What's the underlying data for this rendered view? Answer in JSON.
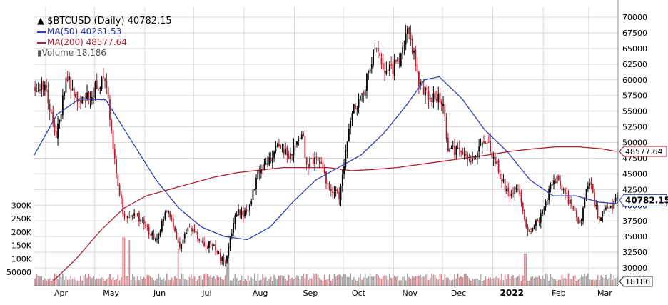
{
  "legend": {
    "title": "$BTCUSD (Daily) 40782.15",
    "ma50": "MA(50) 40261.53",
    "ma200": "MA(200) 48577.64",
    "volume": "Volume 18,186"
  },
  "colors": {
    "up": "#000000",
    "down": "#b01e2e",
    "ma50": "#3040b0",
    "ma200": "#b02030",
    "grid": "#d8d8d8",
    "vol_up": "#a8a8a8",
    "vol_down": "#d08a90"
  },
  "chart_data": {
    "type": "candlestick",
    "symbol": "$BTCUSD",
    "interval": "Daily",
    "last_price": 40782.15,
    "ylim": [
      28000,
      70000
    ],
    "price_ticks": [
      70000,
      67500,
      65000,
      62500,
      60000,
      57500,
      55000,
      52500,
      50000,
      47500,
      45000,
      42500,
      40000,
      37500,
      35000,
      32500,
      30000
    ],
    "volume_ticks": [
      "300K",
      "250K",
      "200K",
      "150K",
      "100K",
      "50000"
    ],
    "x_labels": [
      "Apr",
      "May",
      "Jun",
      "Jul",
      "Aug",
      "Sep",
      "Oct",
      "Nov",
      "Dec",
      "2022",
      "Feb",
      "Mar"
    ],
    "price_path": [
      [
        "2021-03-25",
        59000
      ],
      [
        "2021-04-01",
        59500
      ],
      [
        "2021-04-07",
        50500
      ],
      [
        "2021-04-14",
        60500
      ],
      [
        "2021-04-22",
        56500
      ],
      [
        "2021-04-28",
        57500
      ],
      [
        "2021-05-05",
        59800
      ],
      [
        "2021-05-09",
        58500
      ],
      [
        "2021-05-13",
        47500
      ],
      [
        "2021-05-19",
        38000
      ],
      [
        "2021-05-26",
        39000
      ],
      [
        "2021-06-01",
        36500
      ],
      [
        "2021-06-08",
        34500
      ],
      [
        "2021-06-15",
        39500
      ],
      [
        "2021-06-22",
        33500
      ],
      [
        "2021-06-29",
        36500
      ],
      [
        "2021-07-06",
        34200
      ],
      [
        "2021-07-13",
        33500
      ],
      [
        "2021-07-20",
        30500
      ],
      [
        "2021-07-27",
        39000
      ],
      [
        "2021-08-03",
        38500
      ],
      [
        "2021-08-10",
        45800
      ],
      [
        "2021-08-16",
        47000
      ],
      [
        "2021-08-22",
        49500
      ],
      [
        "2021-08-29",
        48000
      ],
      [
        "2021-09-06",
        51500
      ],
      [
        "2021-09-08",
        46500
      ],
      [
        "2021-09-15",
        47500
      ],
      [
        "2021-09-22",
        43000
      ],
      [
        "2021-09-29",
        41500
      ],
      [
        "2021-10-06",
        55000
      ],
      [
        "2021-10-13",
        57500
      ],
      [
        "2021-10-20",
        65000
      ],
      [
        "2021-10-27",
        61000
      ],
      [
        "2021-11-03",
        62500
      ],
      [
        "2021-11-10",
        67500
      ],
      [
        "2021-11-17",
        59500
      ],
      [
        "2021-11-24",
        57000
      ],
      [
        "2021-12-01",
        57000
      ],
      [
        "2021-12-04",
        49500
      ],
      [
        "2021-12-10",
        48500
      ],
      [
        "2021-12-18",
        46800
      ],
      [
        "2021-12-27",
        51000
      ],
      [
        "2022-01-03",
        46500
      ],
      [
        "2022-01-10",
        41800
      ],
      [
        "2022-01-17",
        42500
      ],
      [
        "2022-01-21",
        36500
      ],
      [
        "2022-01-24",
        35500
      ],
      [
        "2022-01-31",
        38500
      ],
      [
        "2022-02-07",
        44000
      ],
      [
        "2022-02-10",
        44200
      ],
      [
        "2022-02-17",
        40500
      ],
      [
        "2022-02-24",
        37000
      ],
      [
        "2022-03-01",
        44400
      ],
      [
        "2022-03-07",
        38000
      ],
      [
        "2022-03-14",
        39500
      ],
      [
        "2022-03-18",
        40782.15
      ]
    ],
    "series": [
      {
        "name": "MA(50)",
        "last": 40261.53,
        "points": [
          [
            "2021-03-25",
            48000
          ],
          [
            "2021-04-08",
            54500
          ],
          [
            "2021-04-22",
            57000
          ],
          [
            "2021-05-08",
            56800
          ],
          [
            "2021-05-22",
            51000
          ],
          [
            "2021-06-08",
            44000
          ],
          [
            "2021-06-22",
            39500
          ],
          [
            "2021-07-06",
            36500
          ],
          [
            "2021-07-20",
            35000
          ],
          [
            "2021-08-03",
            34500
          ],
          [
            "2021-08-17",
            36500
          ],
          [
            "2021-08-31",
            40500
          ],
          [
            "2021-09-14",
            44000
          ],
          [
            "2021-09-28",
            46000
          ],
          [
            "2021-10-12",
            48000
          ],
          [
            "2021-10-26",
            51500
          ],
          [
            "2021-11-09",
            56000
          ],
          [
            "2021-11-20",
            60000
          ],
          [
            "2021-11-29",
            60500
          ],
          [
            "2021-12-13",
            57000
          ],
          [
            "2021-12-27",
            52000
          ],
          [
            "2022-01-10",
            48500
          ],
          [
            "2022-01-24",
            44000
          ],
          [
            "2022-02-07",
            41500
          ],
          [
            "2022-02-21",
            41500
          ],
          [
            "2022-03-07",
            40500
          ],
          [
            "2022-03-18",
            40261.53
          ]
        ]
      },
      {
        "name": "MA(200)",
        "last": 48577.64,
        "points": [
          [
            "2021-04-06",
            28000
          ],
          [
            "2021-04-20",
            31500
          ],
          [
            "2021-05-05",
            36000
          ],
          [
            "2021-05-19",
            39500
          ],
          [
            "2021-06-02",
            41500
          ],
          [
            "2021-06-16",
            42500
          ],
          [
            "2021-06-30",
            43500
          ],
          [
            "2021-07-14",
            44500
          ],
          [
            "2021-07-28",
            45200
          ],
          [
            "2021-08-11",
            45600
          ],
          [
            "2021-08-25",
            46000
          ],
          [
            "2021-09-08",
            46000
          ],
          [
            "2021-09-22",
            46000
          ],
          [
            "2021-10-06",
            45500
          ],
          [
            "2021-10-20",
            45700
          ],
          [
            "2021-11-03",
            46000
          ],
          [
            "2021-11-17",
            46500
          ],
          [
            "2021-12-01",
            47000
          ],
          [
            "2021-12-15",
            47500
          ],
          [
            "2021-12-29",
            48000
          ],
          [
            "2022-01-12",
            48600
          ],
          [
            "2022-01-26",
            49000
          ],
          [
            "2022-02-09",
            49300
          ],
          [
            "2022-02-23",
            49300
          ],
          [
            "2022-03-09",
            49000
          ],
          [
            "2022-03-18",
            48577.64
          ]
        ]
      }
    ],
    "volume": {
      "last": 18186,
      "ylim": [
        0,
        330000
      ],
      "spikes": [
        [
          "2021-05-19",
          180000
        ],
        [
          "2021-05-23",
          170000
        ],
        [
          "2021-06-21",
          140000
        ],
        [
          "2021-07-22",
          100000
        ],
        [
          "2021-12-04",
          30000
        ],
        [
          "2022-01-21",
          120000
        ]
      ]
    }
  },
  "axis_badges": {
    "ma200_value": "48577.64",
    "last_price": "40782.15",
    "volume_value": "18186"
  }
}
